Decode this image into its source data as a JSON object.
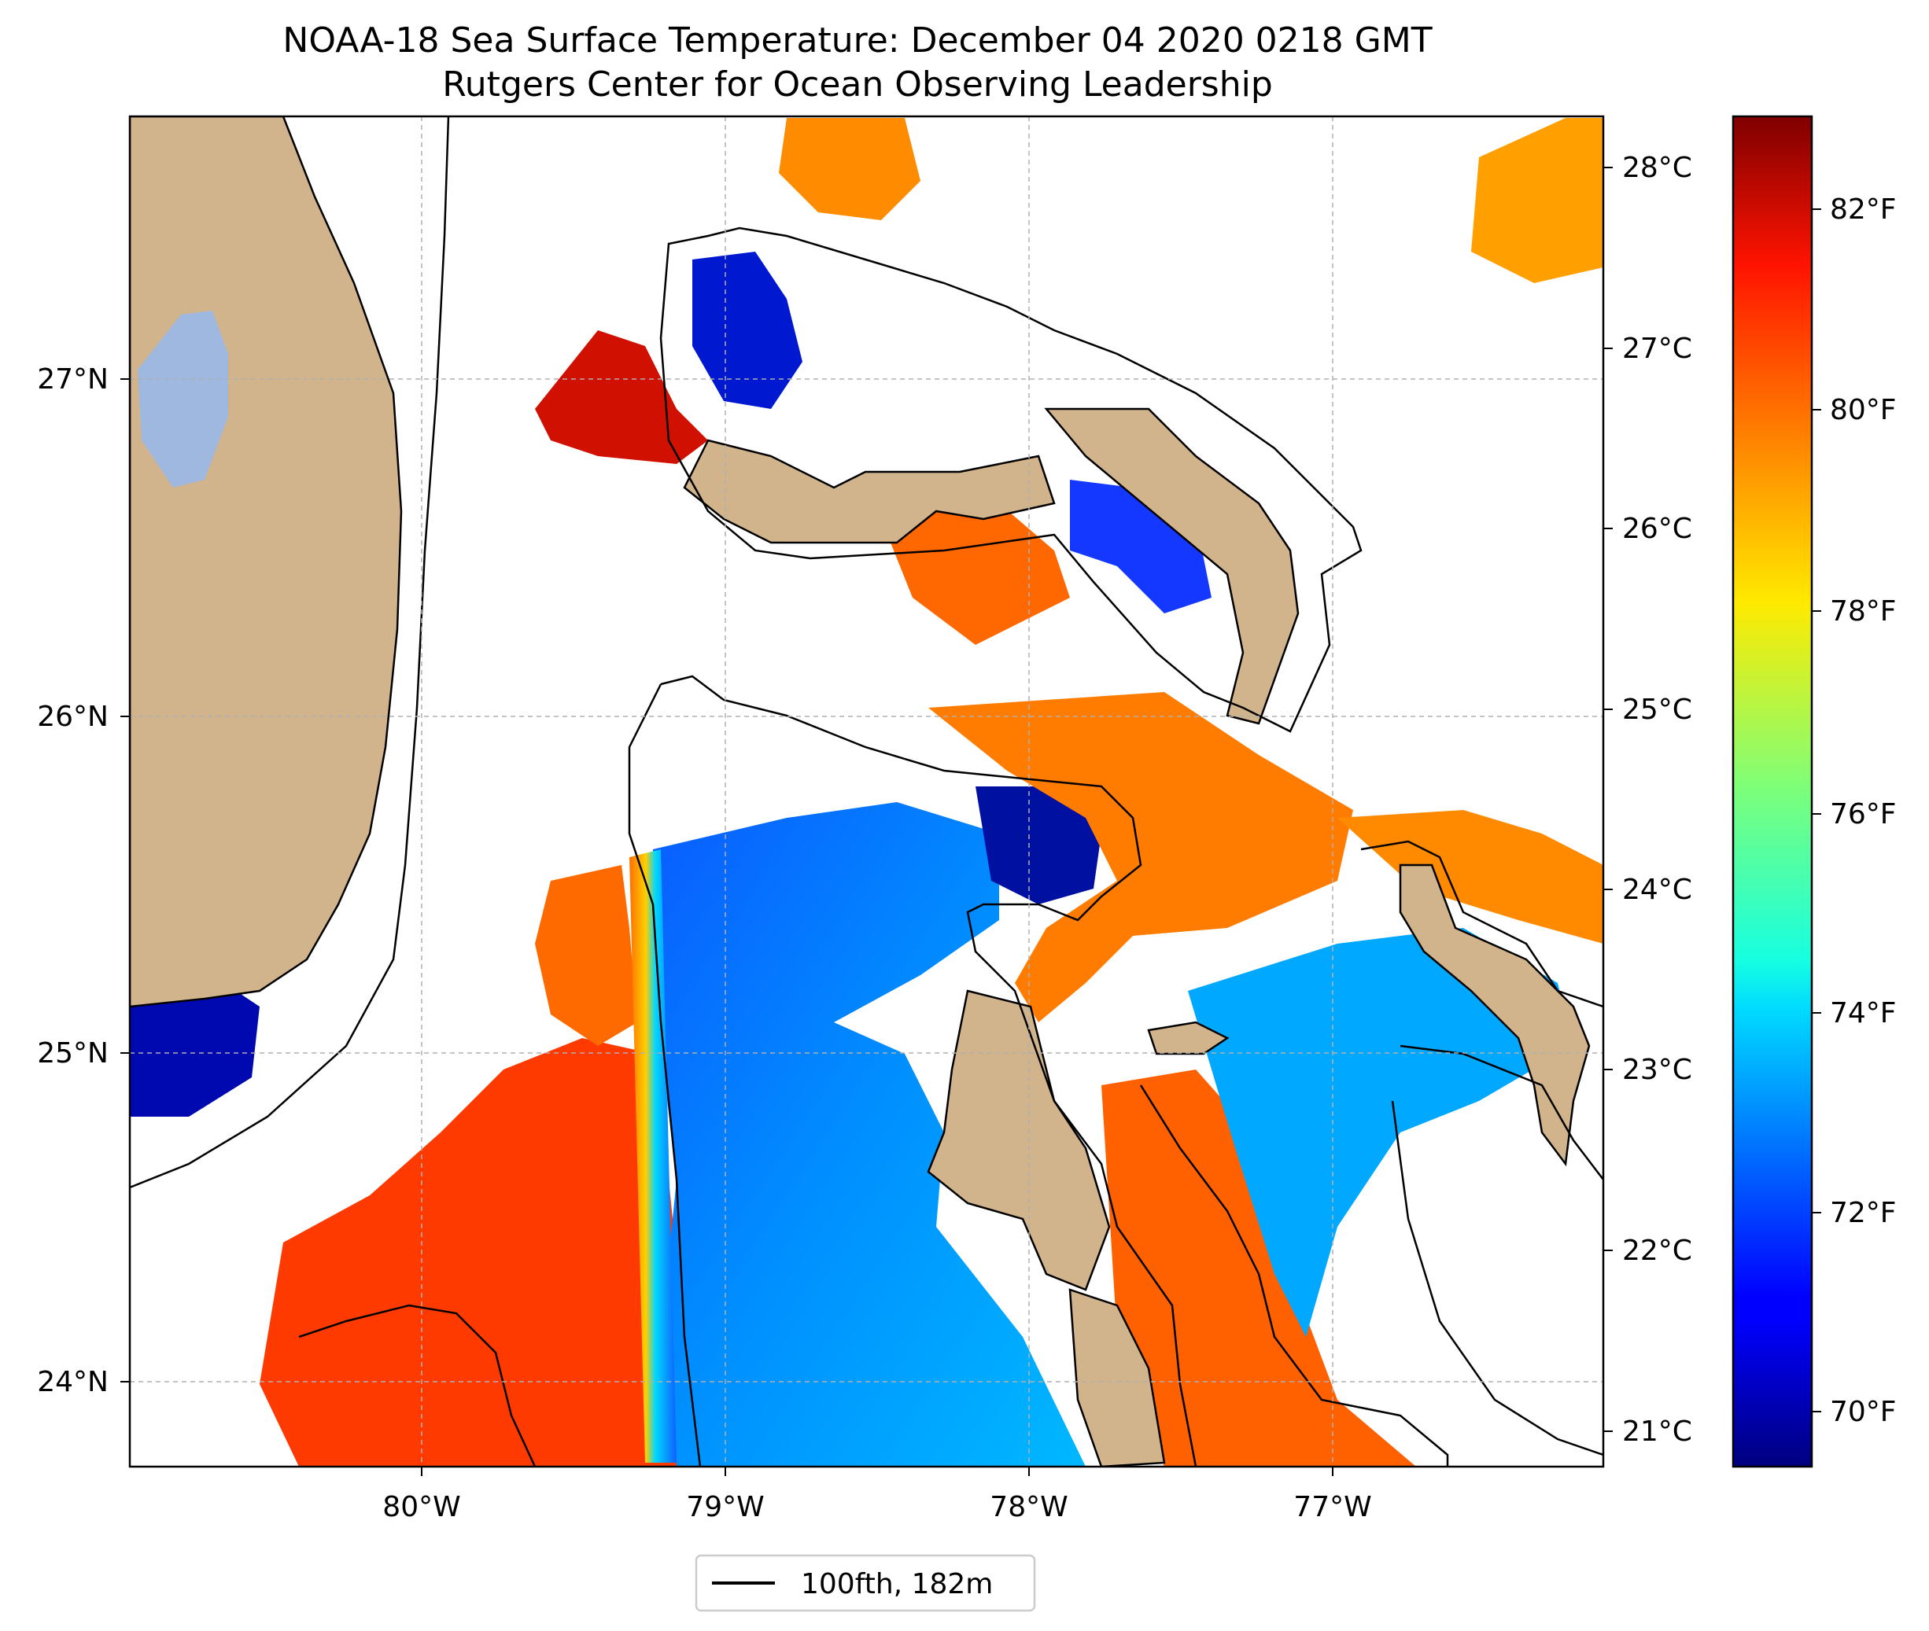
{
  "title": {
    "line1": "NOAA-18 Sea Surface Temperature: December 04 2020 0218 GMT",
    "line2": "Rutgers Center for Ocean Observing Leadership"
  },
  "map": {
    "lon_range": [
      -80.95,
      -76.1
    ],
    "lat_range": [
      23.75,
      27.75
    ],
    "lon_ticks": [
      {
        "value": -80,
        "label": "80°W"
      },
      {
        "value": -79,
        "label": "79°W"
      },
      {
        "value": -78,
        "label": "78°W"
      },
      {
        "value": -77,
        "label": "77°W"
      }
    ],
    "lat_ticks": [
      {
        "value": 24,
        "label": "24°N"
      },
      {
        "value": 25,
        "label": "25°N"
      },
      {
        "value": 26,
        "label": "26°N"
      },
      {
        "value": 27,
        "label": "27°N"
      }
    ],
    "grid": true,
    "colors": {
      "land": "#d2b48c",
      "lake": "#9fb8e0",
      "grid": "#b0b0b0",
      "coast": "#000000"
    }
  },
  "colorbar": {
    "colormap": "jet",
    "celsius_ticks": [
      {
        "value": 21,
        "label": "21°C"
      },
      {
        "value": 22,
        "label": "22°C"
      },
      {
        "value": 23,
        "label": "23°C"
      },
      {
        "value": 24,
        "label": "24°C"
      },
      {
        "value": 25,
        "label": "25°C"
      },
      {
        "value": 26,
        "label": "26°C"
      },
      {
        "value": 27,
        "label": "27°C"
      },
      {
        "value": 28,
        "label": "28°C"
      }
    ],
    "fahrenheit_ticks": [
      {
        "value": 70,
        "label": "70°F"
      },
      {
        "value": 72,
        "label": "72°F"
      },
      {
        "value": 74,
        "label": "74°F"
      },
      {
        "value": 76,
        "label": "76°F"
      },
      {
        "value": 78,
        "label": "78°F"
      },
      {
        "value": 80,
        "label": "80°F"
      },
      {
        "value": 82,
        "label": "82°F"
      }
    ],
    "range_f": [
      69.4,
      83.0
    ]
  },
  "legend": {
    "label": "100fth, 182m",
    "placement": "bottom-center"
  }
}
